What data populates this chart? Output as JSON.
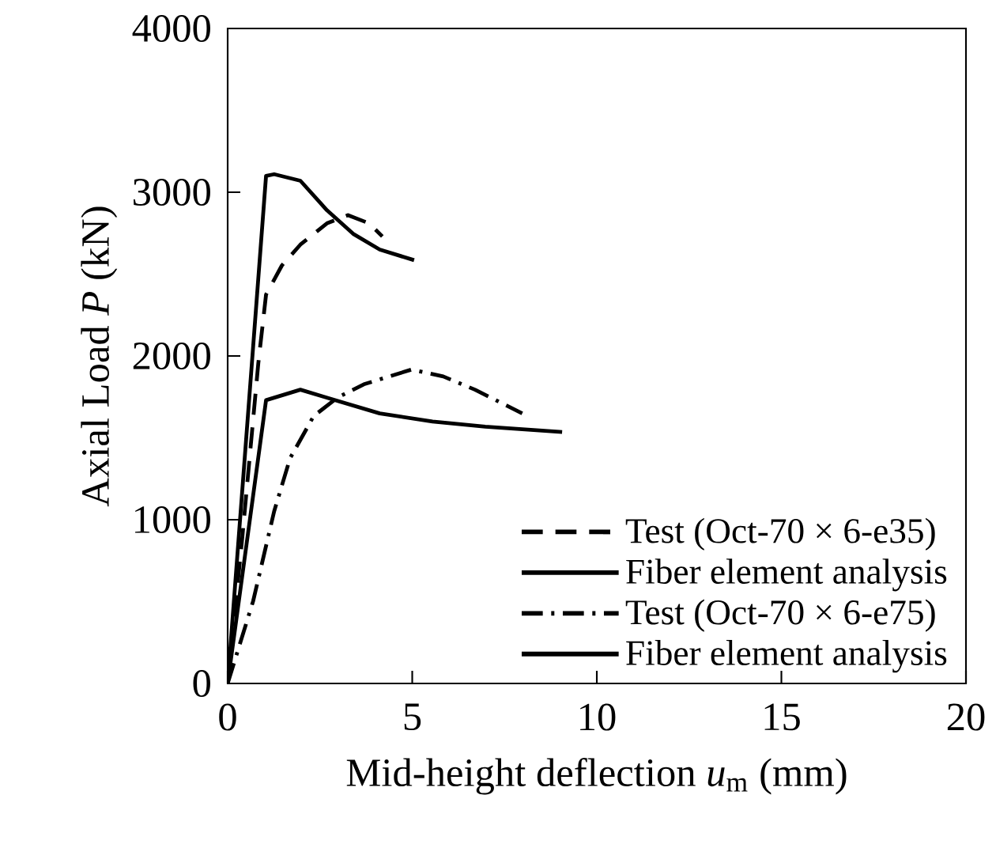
{
  "chart_data": {
    "type": "line",
    "xlabel": "Mid-height deflection *u*$_{m}$ (mm)",
    "ylabel": "Axial Load *P* (kN)",
    "xlim": [
      0,
      20
    ],
    "ylim": [
      0,
      4000
    ],
    "xticks": [
      0,
      5,
      10,
      15,
      20
    ],
    "yticks": [
      0,
      1000,
      2000,
      3000,
      4000
    ],
    "grid": false,
    "legend": "bottom right",
    "marker": "none",
    "series": [
      {
        "name": "Test (Oct-70 × 6-e35)",
        "color": "#000000",
        "line_style": "dashed",
        "x": [
          0,
          0.4,
          0.83,
          1.04,
          1.47,
          1.97,
          2.69,
          3.26,
          3.83,
          4.19
        ],
        "values": [
          0,
          900,
          1955,
          2375,
          2553,
          2680,
          2810,
          2860,
          2810,
          2730
        ]
      },
      {
        "name": "Fiber element analysis",
        "color": "#000000",
        "line_style": "solid",
        "x": [
          0,
          1.04,
          1.26,
          1.97,
          2.69,
          3.4,
          4.12,
          5.05
        ],
        "values": [
          0,
          3100,
          3110,
          3070,
          2890,
          2746,
          2650,
          2585
        ]
      },
      {
        "name": "Test (Oct-70 × 6-e75)",
        "color": "#000000",
        "line_style": "dashdot",
        "x": [
          0,
          0.69,
          1.26,
          1.69,
          2.33,
          2.97,
          3.69,
          4.98,
          5.84,
          6.7,
          7.98
        ],
        "values": [
          0,
          503,
          1052,
          1375,
          1633,
          1745,
          1827,
          1917,
          1875,
          1794,
          1649
        ]
      },
      {
        "name": "Fiber element analysis",
        "color": "#000000",
        "line_style": "solid",
        "x": [
          0,
          1.04,
          1.97,
          2.69,
          4.12,
          5.55,
          6.98,
          9.06
        ],
        "values": [
          0,
          1730,
          1794,
          1745,
          1649,
          1600,
          1568,
          1536
        ]
      }
    ]
  }
}
